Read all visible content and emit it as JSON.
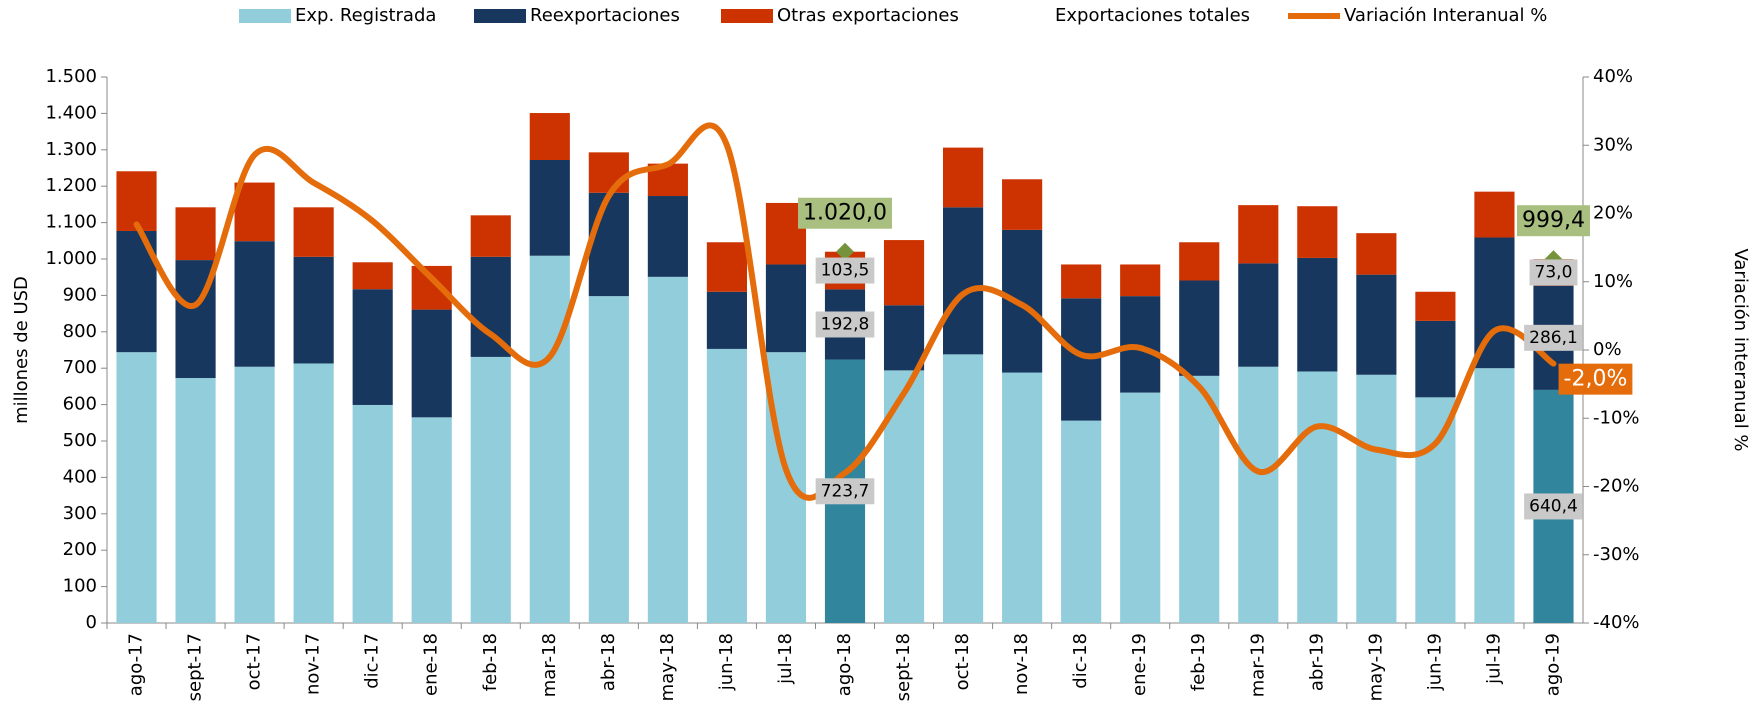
{
  "chart_data": {
    "type": "bar",
    "categories": [
      "ago-17",
      "sept-17",
      "oct-17",
      "nov-17",
      "dic-17",
      "ene-18",
      "feb-18",
      "mar-18",
      "abr-18",
      "may-18",
      "jun-18",
      "jul-18",
      "ago-18",
      "sept-18",
      "oct-18",
      "nov-18",
      "dic-18",
      "ene-19",
      "feb-19",
      "mar-19",
      "abr-19",
      "may-19",
      "jun-19",
      "jul-19",
      "ago-19"
    ],
    "series": [
      {
        "name": "Exp. Registrada",
        "type": "bar",
        "color": "#92cddc",
        "highlight_color": "#31859c",
        "highlight": [
          12,
          24
        ],
        "values": [
          744,
          673,
          704,
          713,
          599,
          565,
          731,
          1009,
          898,
          951,
          753,
          744,
          723.7,
          694,
          738,
          688,
          556,
          633,
          679,
          704,
          691,
          682,
          620,
          700,
          640.4
        ],
        "value_labels": [
          null,
          null,
          null,
          null,
          null,
          null,
          null,
          null,
          null,
          null,
          null,
          null,
          "723,7",
          null,
          null,
          null,
          null,
          null,
          null,
          null,
          null,
          null,
          null,
          null,
          "640,4"
        ]
      },
      {
        "name": "Reexportaciones",
        "type": "bar",
        "color": "#17375e",
        "values": [
          333,
          324,
          345,
          293,
          318,
          296,
          275,
          263,
          284,
          222,
          157,
          241,
          192.8,
          179,
          404,
          392,
          336,
          265,
          262,
          284,
          312,
          275,
          210,
          359,
          286.1
        ],
        "value_labels": [
          null,
          null,
          null,
          null,
          null,
          null,
          null,
          null,
          null,
          null,
          null,
          null,
          "192,8",
          null,
          null,
          null,
          null,
          null,
          null,
          null,
          null,
          null,
          null,
          null,
          "286,1"
        ]
      },
      {
        "name": "Otras exportaciones",
        "type": "bar",
        "color": "#cc3300",
        "values": [
          164,
          145,
          161,
          136,
          74,
          120,
          114,
          129,
          111,
          89,
          136,
          169,
          103.5,
          179,
          164,
          139,
          93,
          87,
          105,
          160,
          142,
          114,
          80,
          126,
          73.0
        ],
        "value_labels": [
          null,
          null,
          null,
          null,
          null,
          null,
          null,
          null,
          null,
          null,
          null,
          null,
          "103,5",
          null,
          null,
          null,
          null,
          null,
          null,
          null,
          null,
          null,
          null,
          null,
          "73,0"
        ]
      },
      {
        "name": "Exportaciones  totales",
        "type": "marker",
        "color": "#76933c",
        "label_color": "#a9bf7f",
        "values": [
          null,
          null,
          null,
          null,
          null,
          null,
          null,
          null,
          null,
          null,
          null,
          null,
          1020.0,
          null,
          null,
          null,
          null,
          null,
          null,
          null,
          null,
          null,
          null,
          null,
          999.4
        ],
        "value_labels": [
          null,
          null,
          null,
          null,
          null,
          null,
          null,
          null,
          null,
          null,
          null,
          null,
          "1.020,0",
          null,
          null,
          null,
          null,
          null,
          null,
          null,
          null,
          null,
          null,
          null,
          "999,4"
        ]
      },
      {
        "name": "Variación Interanual %",
        "type": "line",
        "axis": "y2",
        "color": "#e46c0a",
        "values": [
          18.4,
          6.6,
          28.6,
          24.5,
          18.9,
          10.5,
          2.3,
          -1.0,
          22.6,
          27.2,
          30.0,
          -17.5,
          -18.0,
          -6.3,
          8.2,
          6.6,
          -0.7,
          0.3,
          -5.4,
          -17.8,
          -11.2,
          -14.6,
          -13.7,
          2.8,
          -2.0
        ],
        "value_labels": [
          null,
          null,
          null,
          null,
          null,
          null,
          null,
          null,
          null,
          null,
          null,
          null,
          null,
          null,
          null,
          null,
          null,
          null,
          null,
          null,
          null,
          null,
          null,
          null,
          "-2,0%"
        ]
      }
    ],
    "y_label": "millones de  USD",
    "y2_label": "Variación  interanual %",
    "ylim": [
      0,
      1500
    ],
    "yticks": [
      0,
      100,
      200,
      300,
      400,
      500,
      600,
      700,
      800,
      900,
      {
        "value": 1000,
        "label": "1.000"
      },
      {
        "value": 1100,
        "label": "1.100"
      },
      {
        "value": 1200,
        "label": "1.200"
      },
      {
        "value": 1300,
        "label": "1.300"
      },
      {
        "value": 1400,
        "label": "1.400"
      },
      {
        "value": 1500,
        "label": "1.500"
      }
    ],
    "y2lim": [
      -40,
      40
    ],
    "y2ticks": [
      {
        "value": -40,
        "label": "-40%"
      },
      {
        "value": -30,
        "label": "-30%"
      },
      {
        "value": -20,
        "label": "-20%"
      },
      {
        "value": -10,
        "label": "-10%"
      },
      {
        "value": 0,
        "label": "0%"
      },
      {
        "value": 10,
        "label": "10%"
      },
      {
        "value": 20,
        "label": "20%"
      },
      {
        "value": 30,
        "label": "30%"
      },
      {
        "value": 40,
        "label": "40%"
      }
    ],
    "grid": false,
    "legend": "top"
  }
}
